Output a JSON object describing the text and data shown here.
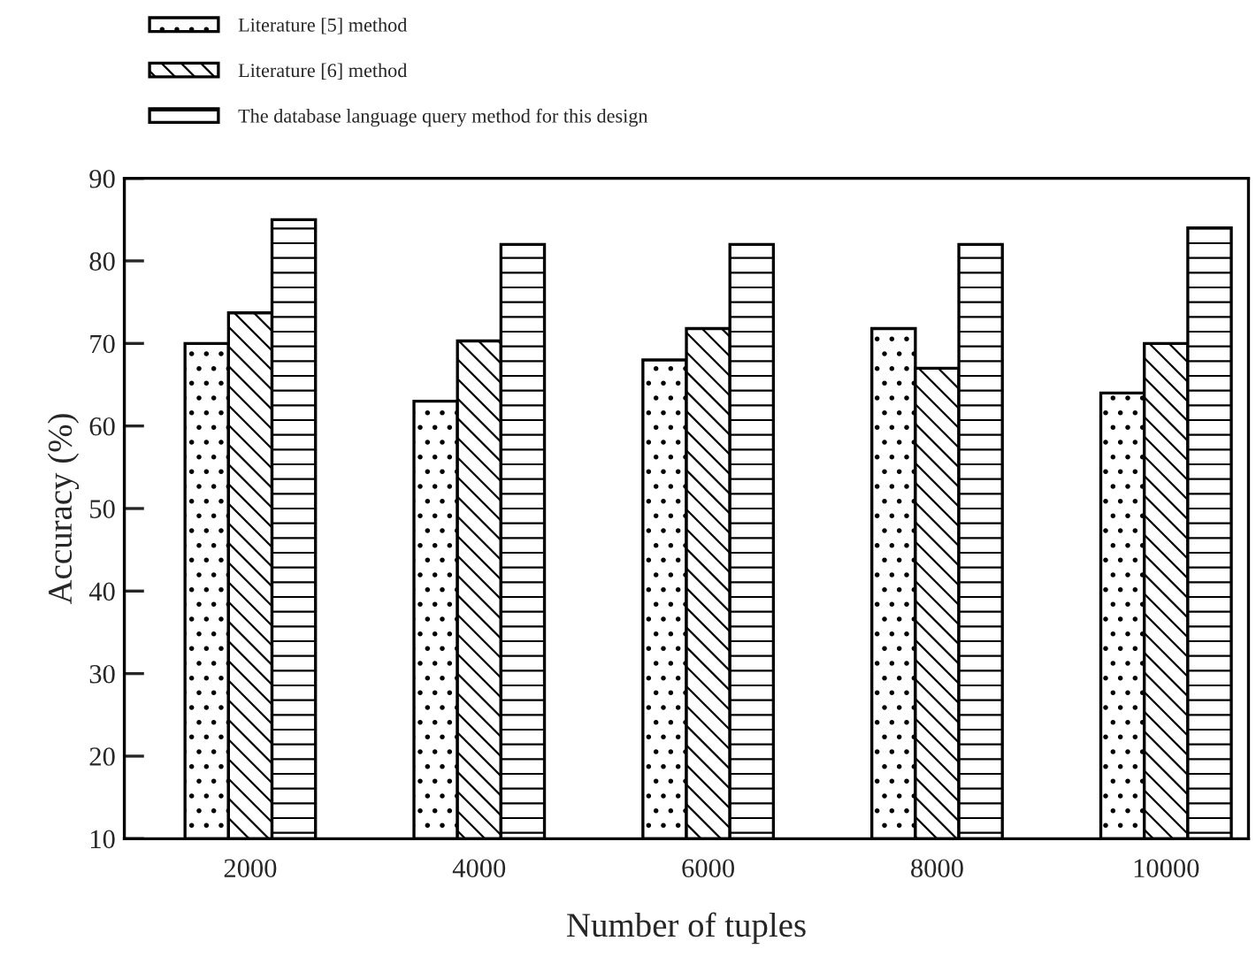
{
  "chart_data": {
    "type": "bar",
    "xlabel": "Number of tuples",
    "ylabel": "Accuracy (%)",
    "categories": [
      "2000",
      "4000",
      "6000",
      "8000",
      "10000"
    ],
    "series": [
      {
        "name": "Literature [5] method",
        "color": "#000000",
        "values": [
          70,
          63,
          68,
          71.8,
          64
        ]
      },
      {
        "name": "Literature [6] method",
        "color": "#000000",
        "values": [
          73.7,
          70.3,
          71.8,
          67,
          70
        ]
      },
      {
        "name": "The database language query method for this design",
        "color": "#000000",
        "values": [
          85,
          82,
          82,
          82,
          84
        ]
      }
    ],
    "ylim": [
      10,
      90
    ],
    "yticks": [
      10,
      20,
      30,
      40,
      50,
      60,
      70,
      80,
      90
    ],
    "grid": false,
    "legend": "top left"
  }
}
